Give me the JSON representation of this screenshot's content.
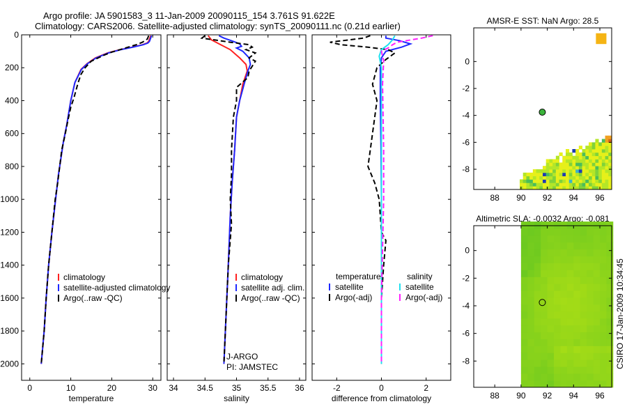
{
  "header": {
    "title_line1": "Argo profile: JA 5901583_3 11-Jan-2009 20090115_154 3.761S 91.622E",
    "title_line2": "Climatology: CARS2006. Satellite-adjusted climatology: synTS_20090111.nc (0.21d earlier)"
  },
  "side_stamp": "CSIRO 17-Jan-2009 10:34:45",
  "colors": {
    "climatology": "#ff2020",
    "satellite": "#1e28ff",
    "argo": "#000000",
    "salinity_satellite": "#20e0f0",
    "salinity_argo": "#ff20ff"
  },
  "chart_data": [
    {
      "type": "line",
      "name": "temperature-profile",
      "xlabel": "temperature",
      "ylabel": "",
      "xlim": [
        -2,
        32
      ],
      "ylim": [
        2100,
        0
      ],
      "xticks": [
        "0",
        "10",
        "20",
        "30"
      ],
      "xtick_values": [
        0,
        10,
        20,
        30
      ],
      "yticks": [
        "0",
        "200",
        "400",
        "600",
        "800",
        "1000",
        "1200",
        "1400",
        "1600",
        "1800",
        "2000"
      ],
      "ytick_values": [
        0,
        200,
        400,
        600,
        800,
        1000,
        1200,
        1400,
        1600,
        1800,
        2000
      ],
      "legend": [
        "climatology",
        "satellite-adjusted climatology",
        "Argo(..raw -QC)"
      ],
      "series": [
        {
          "name": "climatology",
          "style": "solid",
          "color": "#ff2020",
          "points": [
            [
              29.5,
              5
            ],
            [
              29.3,
              20
            ],
            [
              29.0,
              40
            ],
            [
              28.6,
              50
            ],
            [
              27.5,
              60
            ],
            [
              25,
              75
            ],
            [
              22,
              90
            ],
            [
              19,
              110
            ],
            [
              16,
              140
            ],
            [
              14,
              175
            ],
            [
              12.5,
              210
            ],
            [
              11,
              290
            ],
            [
              10,
              400
            ],
            [
              9,
              550
            ],
            [
              8.2,
              650
            ],
            [
              7,
              850
            ],
            [
              6.3,
              1000
            ],
            [
              5.4,
              1200
            ],
            [
              4.6,
              1400
            ],
            [
              4.0,
              1600
            ],
            [
              3.5,
              1800
            ],
            [
              2.8,
              2000
            ]
          ]
        },
        {
          "name": "satellite",
          "style": "solid",
          "color": "#1e28ff",
          "points": [
            [
              29.7,
              5
            ],
            [
              29.5,
              20
            ],
            [
              29.2,
              40
            ],
            [
              28.8,
              50
            ],
            [
              27.7,
              60
            ],
            [
              25.2,
              75
            ],
            [
              22.2,
              90
            ],
            [
              19.2,
              110
            ],
            [
              16.2,
              140
            ],
            [
              14.1,
              175
            ],
            [
              12.6,
              210
            ],
            [
              11,
              290
            ],
            [
              10,
              400
            ],
            [
              9,
              550
            ],
            [
              8.2,
              650
            ],
            [
              7,
              850
            ],
            [
              6.3,
              1000
            ],
            [
              5.4,
              1200
            ],
            [
              4.6,
              1400
            ],
            [
              4.0,
              1600
            ],
            [
              3.5,
              1800
            ],
            [
              2.8,
              2000
            ]
          ]
        },
        {
          "name": "argo",
          "style": "dashed",
          "color": "#000000",
          "points": [
            [
              29.0,
              5
            ],
            [
              28.7,
              25
            ],
            [
              27.5,
              45
            ],
            [
              26,
              60
            ],
            [
              24,
              75
            ],
            [
              22,
              90
            ],
            [
              20,
              105
            ],
            [
              18,
              125
            ],
            [
              15,
              160
            ],
            [
              13.5,
              200
            ],
            [
              12.5,
              240
            ],
            [
              11.8,
              290
            ],
            [
              10.8,
              380
            ],
            [
              10,
              440
            ],
            [
              9.3,
              520
            ],
            [
              8.5,
              620
            ],
            [
              7.8,
              700
            ],
            [
              7.3,
              800
            ],
            [
              6.8,
              900
            ],
            [
              6.2,
              1000
            ],
            [
              5.4,
              1200
            ],
            [
              4.6,
              1400
            ],
            [
              4.0,
              1600
            ],
            [
              3.5,
              1800
            ],
            [
              2.8,
              2000
            ]
          ]
        }
      ]
    },
    {
      "type": "line",
      "name": "salinity-profile",
      "xlabel": "salinity",
      "xlim": [
        33.9,
        36.1
      ],
      "ylim": [
        2100,
        0
      ],
      "xticks": [
        "34",
        "34.5",
        "35",
        "35.5",
        "36"
      ],
      "xtick_values": [
        34,
        34.5,
        35,
        35.5,
        36
      ],
      "legend": [
        "climatology",
        "satellite adj. clim.",
        "Argo(..raw -QC)"
      ],
      "annotations": [
        "J-ARGO",
        "PI: JAMSTEC"
      ],
      "series": [
        {
          "name": "climatology",
          "style": "solid",
          "color": "#ff2020",
          "points": [
            [
              34.55,
              5
            ],
            [
              34.6,
              30
            ],
            [
              34.75,
              60
            ],
            [
              34.9,
              90
            ],
            [
              35.05,
              140
            ],
            [
              35.15,
              180
            ],
            [
              35.17,
              220
            ],
            [
              35.1,
              300
            ],
            [
              35.05,
              400
            ],
            [
              35.0,
              500
            ],
            [
              34.97,
              700
            ],
            [
              34.93,
              900
            ],
            [
              34.9,
              1100
            ],
            [
              34.87,
              1400
            ],
            [
              34.8,
              2000
            ]
          ]
        },
        {
          "name": "satellite",
          "style": "solid",
          "color": "#1e28ff",
          "points": [
            [
              34.72,
              5
            ],
            [
              34.8,
              20
            ],
            [
              34.95,
              40
            ],
            [
              35.05,
              55
            ],
            [
              35.08,
              70
            ],
            [
              35.0,
              80
            ],
            [
              35.1,
              100
            ],
            [
              35.2,
              140
            ],
            [
              35.22,
              180
            ],
            [
              35.18,
              220
            ],
            [
              35.12,
              300
            ],
            [
              35.05,
              400
            ],
            [
              35.0,
              500
            ],
            [
              34.97,
              700
            ],
            [
              34.93,
              900
            ],
            [
              34.9,
              1100
            ],
            [
              34.87,
              1400
            ],
            [
              34.8,
              2000
            ]
          ]
        },
        {
          "name": "argo",
          "style": "dashed",
          "color": "#000000",
          "points": [
            [
              34.5,
              5
            ],
            [
              34.45,
              20
            ],
            [
              34.9,
              45
            ],
            [
              35.2,
              60
            ],
            [
              35.25,
              75
            ],
            [
              35.15,
              90
            ],
            [
              35.3,
              110
            ],
            [
              35.2,
              140
            ],
            [
              35.3,
              160
            ],
            [
              35.2,
              220
            ],
            [
              35.18,
              260
            ],
            [
              35.0,
              320
            ],
            [
              35.0,
              400
            ],
            [
              34.95,
              500
            ],
            [
              34.92,
              700
            ],
            [
              34.92,
              850
            ],
            [
              34.9,
              1000
            ],
            [
              34.92,
              1150
            ],
            [
              34.87,
              1400
            ],
            [
              34.8,
              2000
            ]
          ]
        }
      ]
    },
    {
      "type": "line",
      "name": "difference-profile",
      "xlabel": "difference from climatology",
      "xlim": [
        -3.1,
        3.1
      ],
      "ylim": [
        2100,
        0
      ],
      "xticks": [
        "-2",
        "0",
        "2"
      ],
      "xtick_values": [
        -2,
        0,
        2
      ],
      "legend_headers": [
        "temperature",
        "salinity"
      ],
      "legend": [
        "satellite",
        "Argo(-adj)",
        "satellite",
        "Argo(-adj)"
      ],
      "series": [
        {
          "name": "temperature satellite",
          "style": "solid",
          "color": "#1e28ff",
          "points": [
            [
              0.2,
              5
            ],
            [
              0.2,
              20
            ],
            [
              0.8,
              35
            ],
            [
              1.3,
              55
            ],
            [
              0.9,
              75
            ],
            [
              0.2,
              100
            ],
            [
              0.0,
              140
            ],
            [
              -0.05,
              200
            ],
            [
              -0.05,
              400
            ],
            [
              -0.02,
              700
            ],
            [
              0.0,
              1000
            ],
            [
              0.0,
              1400
            ],
            [
              0.0,
              2000
            ]
          ]
        },
        {
          "name": "temperature argo",
          "style": "dashed",
          "color": "#000000",
          "points": [
            [
              -0.5,
              5
            ],
            [
              -0.8,
              20
            ],
            [
              -2.3,
              45
            ],
            [
              -1.8,
              60
            ],
            [
              -0.6,
              75
            ],
            [
              0.3,
              90
            ],
            [
              0.6,
              110
            ],
            [
              0.2,
              150
            ],
            [
              -0.2,
              200
            ],
            [
              -0.4,
              300
            ],
            [
              -0.2,
              400
            ],
            [
              -0.3,
              500
            ],
            [
              -0.4,
              600
            ],
            [
              -0.5,
              700
            ],
            [
              -0.6,
              800
            ],
            [
              -0.3,
              900
            ],
            [
              -0.1,
              1000
            ],
            [
              0.0,
              1200
            ],
            [
              0.2,
              1250
            ],
            [
              0.1,
              1400
            ],
            [
              0.0,
              1600
            ],
            [
              0.0,
              1800
            ],
            [
              0.0,
              2000
            ]
          ]
        },
        {
          "name": "salinity satellite",
          "style": "solid",
          "color": "#20e0f0",
          "points": [
            [
              0.6,
              5
            ],
            [
              0.5,
              30
            ],
            [
              0.3,
              60
            ],
            [
              0.0,
              90
            ],
            [
              -0.1,
              130
            ],
            [
              0.0,
              200
            ],
            [
              0.0,
              400
            ],
            [
              0.0,
              700
            ],
            [
              0.0,
              1000
            ],
            [
              0.0,
              1400
            ],
            [
              0.0,
              2000
            ]
          ]
        },
        {
          "name": "salinity argo",
          "style": "dashed",
          "color": "#ff20ff",
          "points": [
            [
              2.3,
              5
            ],
            [
              1.8,
              20
            ],
            [
              0.7,
              45
            ],
            [
              0.5,
              60
            ],
            [
              0.3,
              80
            ],
            [
              0.0,
              100
            ],
            [
              0.1,
              160
            ],
            [
              0.05,
              300
            ],
            [
              0.1,
              700
            ],
            [
              0.1,
              1000
            ],
            [
              0.05,
              1300
            ],
            [
              0.0,
              1600
            ],
            [
              0.0,
              2000
            ]
          ]
        }
      ]
    },
    {
      "type": "heatmap",
      "name": "amsre-sst-map",
      "title": "AMSR-E SST: NaN Argo: 28.5",
      "xlim": [
        86.4,
        96.9
      ],
      "ylim": [
        -9.5,
        2.5
      ],
      "xticks": [
        "88",
        "90",
        "92",
        "94",
        "96"
      ],
      "xtick_values": [
        88,
        90,
        92,
        94,
        96
      ],
      "yticks": [
        "0",
        "-2",
        "-4",
        "-6",
        "-8"
      ],
      "ytick_values": [
        0,
        -2,
        -4,
        -6,
        -8
      ],
      "argo_position": [
        91.62,
        -3.76
      ]
    },
    {
      "type": "heatmap",
      "name": "altimetric-sla-map",
      "title": "Altimetric SLA: -0.0032 Argo: -0.081",
      "xlim": [
        86.4,
        96.9
      ],
      "ylim": [
        -9.9,
        1.8
      ],
      "xticks": [
        "88",
        "90",
        "92",
        "94",
        "96"
      ],
      "xtick_values": [
        88,
        90,
        92,
        94,
        96
      ],
      "yticks": [
        "0",
        "-2",
        "-4",
        "-6",
        "-8"
      ],
      "ytick_values": [
        0,
        -2,
        -4,
        -6,
        -8
      ],
      "argo_position": [
        91.62,
        -3.76
      ]
    }
  ]
}
